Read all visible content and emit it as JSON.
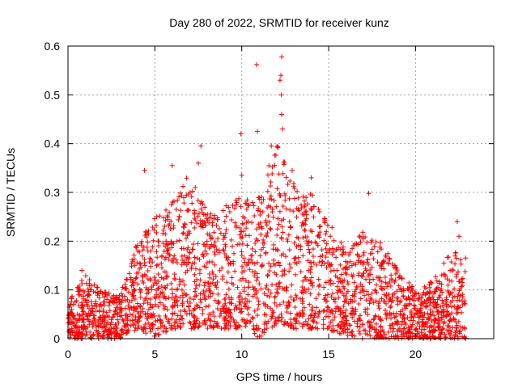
{
  "chart_data": {
    "type": "scatter",
    "title": "Day 280 of 2022, SRMTID for receiver kunz",
    "xlabel": "GPS time / hours",
    "ylabel": "SRMTID / TECUs",
    "xlim": [
      0,
      24.5
    ],
    "ylim": [
      0,
      0.6
    ],
    "x_ticks": [
      0,
      5,
      10,
      15,
      20
    ],
    "y_ticks": [
      0,
      0.1,
      0.2,
      0.3,
      0.4,
      0.5,
      0.6
    ],
    "x_tick_labels": [
      "0",
      "5",
      "10",
      "15",
      "20"
    ],
    "y_tick_labels": [
      "0",
      "0.1",
      "0.2",
      "0.3",
      "0.4",
      "0.5",
      "0.6"
    ],
    "grid": true,
    "marker": "+",
    "series": [
      {
        "name": "SRMTID",
        "color": "#ff0000",
        "data_x_range": [
          0,
          22.9
        ],
        "envelope_note": "dense point cloud; per-hour typical range and notable peaks",
        "hourly_profile": [
          {
            "hour": 0,
            "low": 0.0,
            "high": 0.08
          },
          {
            "hour": 1,
            "low": 0.0,
            "high": 0.13
          },
          {
            "hour": 2,
            "low": 0.0,
            "high": 0.1
          },
          {
            "hour": 3,
            "low": 0.0,
            "high": 0.09
          },
          {
            "hour": 4,
            "low": 0.02,
            "high": 0.2
          },
          {
            "hour": 5,
            "low": 0.0,
            "high": 0.25
          },
          {
            "hour": 6,
            "low": 0.02,
            "high": 0.28
          },
          {
            "hour": 7,
            "low": 0.02,
            "high": 0.34
          },
          {
            "hour": 8,
            "low": 0.02,
            "high": 0.26
          },
          {
            "hour": 9,
            "low": 0.02,
            "high": 0.27
          },
          {
            "hour": 10,
            "low": 0.02,
            "high": 0.3
          },
          {
            "hour": 11,
            "low": 0.0,
            "high": 0.3
          },
          {
            "hour": 12,
            "low": 0.03,
            "high": 0.4
          },
          {
            "hour": 13,
            "low": 0.02,
            "high": 0.32
          },
          {
            "hour": 14,
            "low": 0.02,
            "high": 0.3
          },
          {
            "hour": 15,
            "low": 0.02,
            "high": 0.25
          },
          {
            "hour": 16,
            "low": 0.0,
            "high": 0.18
          },
          {
            "hour": 17,
            "low": 0.0,
            "high": 0.22
          },
          {
            "hour": 18,
            "low": 0.0,
            "high": 0.2
          },
          {
            "hour": 19,
            "low": 0.0,
            "high": 0.14
          },
          {
            "hour": 20,
            "low": 0.0,
            "high": 0.1
          },
          {
            "hour": 21,
            "low": 0.0,
            "high": 0.12
          },
          {
            "hour": 22,
            "low": 0.0,
            "high": 0.18
          }
        ],
        "peaks": [
          {
            "x": 4.4,
            "y": 0.345
          },
          {
            "x": 6.0,
            "y": 0.355
          },
          {
            "x": 7.5,
            "y": 0.36
          },
          {
            "x": 7.65,
            "y": 0.395
          },
          {
            "x": 9.95,
            "y": 0.42
          },
          {
            "x": 10.0,
            "y": 0.335
          },
          {
            "x": 10.9,
            "y": 0.425
          },
          {
            "x": 10.85,
            "y": 0.562
          },
          {
            "x": 11.7,
            "y": 0.395
          },
          {
            "x": 12.2,
            "y": 0.53
          },
          {
            "x": 12.3,
            "y": 0.578
          },
          {
            "x": 12.25,
            "y": 0.54
          },
          {
            "x": 12.28,
            "y": 0.5
          },
          {
            "x": 12.3,
            "y": 0.46
          },
          {
            "x": 12.35,
            "y": 0.43
          },
          {
            "x": 12.9,
            "y": 0.345
          },
          {
            "x": 14.0,
            "y": 0.33
          },
          {
            "x": 17.3,
            "y": 0.298
          },
          {
            "x": 22.4,
            "y": 0.24
          },
          {
            "x": 0.8,
            "y": 0.14
          },
          {
            "x": 22.5,
            "y": 0.21
          }
        ]
      }
    ]
  }
}
